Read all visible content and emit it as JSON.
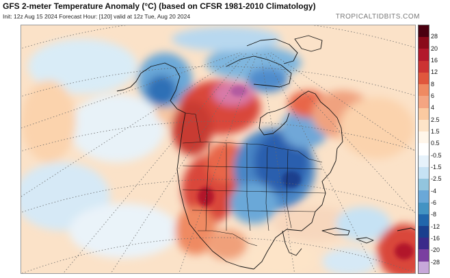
{
  "header": {
    "title": "GFS 2-meter Temperature Anomaly (°C) (based on CFSR 1981-2010 Climatology)",
    "subtitle": "Init: 12z Aug 15 2024   Forecast Hour: [120]   valid at 12z Tue, Aug 20 2024",
    "brand": "TROPICALTIDBITS.COM"
  },
  "colorbar": {
    "labels": [
      "28",
      "20",
      "16",
      "12",
      "8",
      "6",
      "4",
      "2.5",
      "1.5",
      "0.5",
      "-0.5",
      "-1.5",
      "-2.5",
      "-4",
      "-6",
      "-8",
      "-12",
      "-16",
      "-20",
      "-28"
    ],
    "colors": [
      "#4a0010",
      "#8a0a1a",
      "#b2182b",
      "#cc3333",
      "#e0573d",
      "#ef8a62",
      "#f4a582",
      "#fbcaa1",
      "#fde4c8",
      "#fff6ea",
      "#ffffff",
      "#e6f2fb",
      "#c6e2f4",
      "#92c5de",
      "#6aa8d8",
      "#4393c3",
      "#2166ac",
      "#1a3f8e",
      "#3b2a8a",
      "#7a3fa0",
      "#c7a8da"
    ]
  }
}
